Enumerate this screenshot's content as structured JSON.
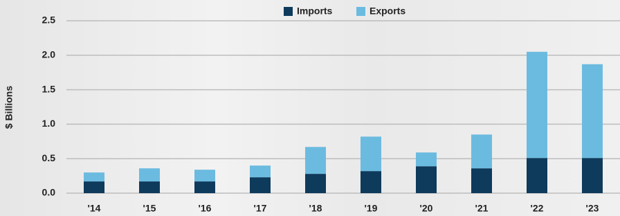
{
  "chart_data": {
    "type": "stacked-bar",
    "y_label": "$ Billions",
    "categories": [
      "'14",
      "'15",
      "'16",
      "'17",
      "'18",
      "'19",
      "'20",
      "'21",
      "'22",
      "'23"
    ],
    "series": [
      {
        "name": "Imports",
        "color": "#0e3a5c",
        "values": [
          0.17,
          0.17,
          0.17,
          0.23,
          0.28,
          0.32,
          0.39,
          0.36,
          0.51,
          0.51
        ]
      },
      {
        "name": "Exports",
        "color": "#6bbbe0",
        "values": [
          0.13,
          0.19,
          0.17,
          0.17,
          0.39,
          0.5,
          0.2,
          0.49,
          1.54,
          1.36
        ]
      }
    ],
    "ylim": [
      0,
      2.5
    ],
    "yticks": [
      {
        "value": 0,
        "label": "0.0"
      },
      0.5,
      {
        "value": 1,
        "label": "1.0"
      },
      1.5,
      {
        "value": 2,
        "label": "2.0"
      },
      2.5
    ],
    "grid": true
  }
}
